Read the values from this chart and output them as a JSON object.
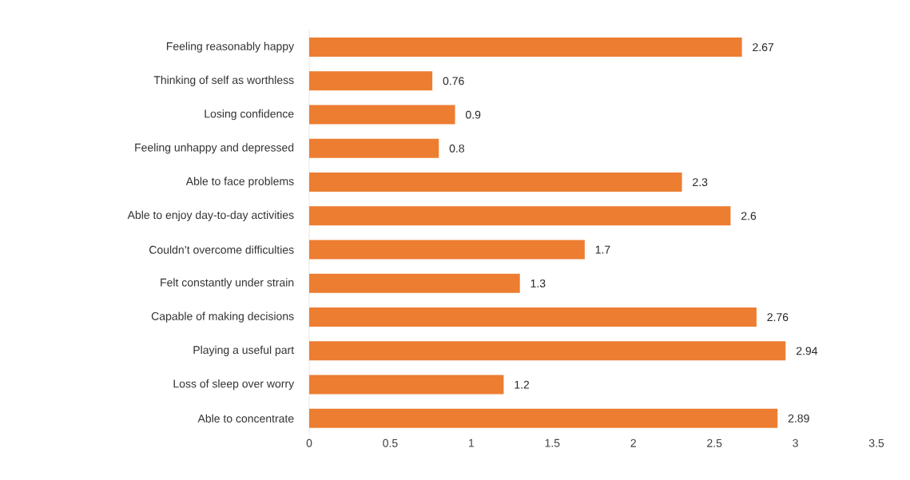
{
  "chart_data": {
    "type": "bar",
    "orientation": "horizontal",
    "categories": [
      "Feeling reasonably happy",
      "Thinking of self as worthless",
      "Losing confidence",
      "Feeling unhappy and depressed",
      "Able to face problems",
      "Able to enjoy day-to-day activities",
      "Couldn’t overcome difficulties",
      "Felt constantly under strain",
      "Capable of making decisions",
      "Playing a useful part",
      "Loss of sleep over worry",
      "Able to concentrate"
    ],
    "values": [
      2.67,
      0.76,
      0.9,
      0.8,
      2.3,
      2.6,
      1.7,
      1.3,
      2.76,
      2.94,
      1.2,
      2.89
    ],
    "color": "#ed7d31",
    "xlim": [
      0,
      3.5
    ],
    "xticks": [
      0,
      0.5,
      1,
      1.5,
      2,
      2.5,
      3,
      3.5
    ],
    "data_labels": true,
    "grid": false
  }
}
